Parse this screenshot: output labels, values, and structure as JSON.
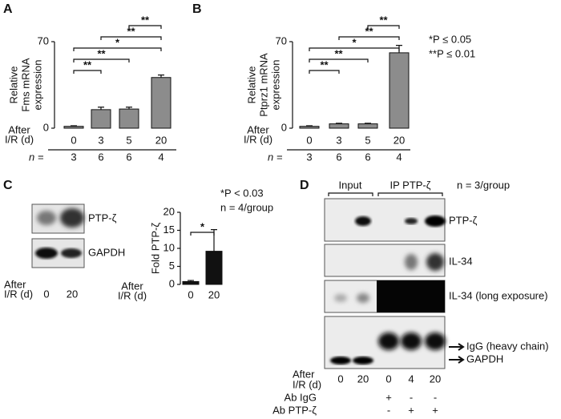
{
  "chart_data": [
    {
      "type": "bar",
      "letter": "A",
      "ylabel": [
        "Relative",
        "Fms mRNA",
        "expression"
      ],
      "xlabel": [
        "After",
        "I/R (d)"
      ],
      "categories": [
        "0",
        "3",
        "5",
        "20"
      ],
      "values": [
        1.5,
        15,
        15.5,
        41
      ],
      "errors": [
        0.5,
        2,
        1.5,
        2
      ],
      "color": "#8c8c8c",
      "ylim": [
        0,
        70
      ],
      "yticks": [
        0,
        70
      ],
      "n_label": "n =",
      "n": [
        3,
        6,
        6,
        4
      ],
      "brackets": [
        {
          "from": "0",
          "to": "3",
          "label": "**"
        },
        {
          "from": "0",
          "to": "5",
          "label": "**"
        },
        {
          "from": "0",
          "to": "20",
          "label": "*"
        },
        {
          "from": "3",
          "to": "20",
          "label": "**"
        },
        {
          "from": "5",
          "to": "20",
          "label": "**"
        }
      ]
    },
    {
      "type": "bar",
      "letter": "B",
      "ylabel": [
        "Relative",
        "Ptprz1 mRNA",
        "expression"
      ],
      "xlabel": [
        "After",
        "I/R (d)"
      ],
      "categories": [
        "0",
        "3",
        "5",
        "20"
      ],
      "values": [
        1.5,
        3.5,
        3.5,
        61
      ],
      "errors": [
        0.5,
        0.5,
        0.5,
        6
      ],
      "color": "#8c8c8c",
      "ylim": [
        0,
        70
      ],
      "yticks": [
        0,
        70
      ],
      "n_label": "n =",
      "n": [
        3,
        6,
        6,
        4
      ],
      "brackets": [
        {
          "from": "0",
          "to": "3",
          "label": "**"
        },
        {
          "from": "0",
          "to": "5",
          "label": "**"
        },
        {
          "from": "0",
          "to": "20",
          "label": "*"
        },
        {
          "from": "3",
          "to": "20",
          "label": "**"
        },
        {
          "from": "5",
          "to": "20",
          "label": "**"
        }
      ],
      "notes": [
        "*P ≤ 0.05",
        "**P ≤ 0.01"
      ]
    },
    {
      "type": "bar",
      "ylabel": [
        "Fold PTP-ζ"
      ],
      "xlabel": [
        "After",
        "I/R (d)"
      ],
      "categories": [
        "0",
        "20"
      ],
      "values": [
        0.8,
        9.2
      ],
      "errors": [
        0.3,
        6
      ],
      "color": "#111111",
      "ylim": [
        0,
        20
      ],
      "yticks": [
        0,
        5,
        10,
        15,
        20
      ],
      "brackets": [
        {
          "from": "0",
          "to": "20",
          "label": "*"
        }
      ],
      "notes": [
        "*P < 0.03",
        "n = 4/group"
      ]
    }
  ],
  "blots": {
    "C": {
      "letter": "C",
      "rows": [
        "PTP-ζ",
        "GAPDH"
      ],
      "lanes": [
        "0",
        "20"
      ],
      "xlabel": [
        "After",
        "I/R (d)"
      ]
    },
    "D": {
      "letter": "D",
      "groups": [
        "Input",
        "IP PTP-ζ"
      ],
      "note": "n = 3/group",
      "rows": [
        "PTP-ζ",
        "IL-34",
        "IL-34 (long exposure)"
      ],
      "arrows": [
        "IgG (heavy chain)",
        "GAPDH"
      ],
      "lanes": [
        "0",
        "20",
        "0",
        "4",
        "20"
      ],
      "xlabel": [
        "After",
        "I/R (d)"
      ],
      "treatments": [
        {
          "name": "Ab IgG",
          "marks": [
            "+",
            "-",
            "-"
          ]
        },
        {
          "name": "Ab PTP-ζ",
          "marks": [
            "-",
            "+",
            "+"
          ]
        }
      ]
    }
  }
}
